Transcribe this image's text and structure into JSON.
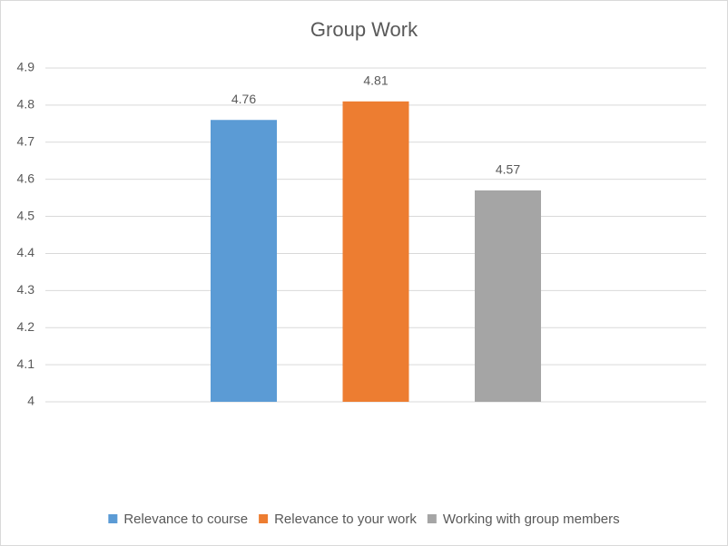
{
  "chart_data": {
    "type": "bar",
    "title": "Group Work",
    "categories": [
      null
    ],
    "series": [
      {
        "name": "Relevance to course",
        "color": "#5b9bd5",
        "values": [
          4.76
        ]
      },
      {
        "name": "Relevance to your work",
        "color": "#ed7d31",
        "values": [
          4.81
        ]
      },
      {
        "name": "Working with group members",
        "color": "#a5a5a5",
        "values": [
          4.57
        ]
      }
    ],
    "ylim": [
      4,
      4.9
    ],
    "yticks": [
      4,
      4.1,
      4.2,
      4.3,
      4.4,
      4.5,
      4.6,
      4.7,
      4.8,
      4.9
    ],
    "grid": true,
    "legend": "bottom",
    "data_labels": true
  }
}
